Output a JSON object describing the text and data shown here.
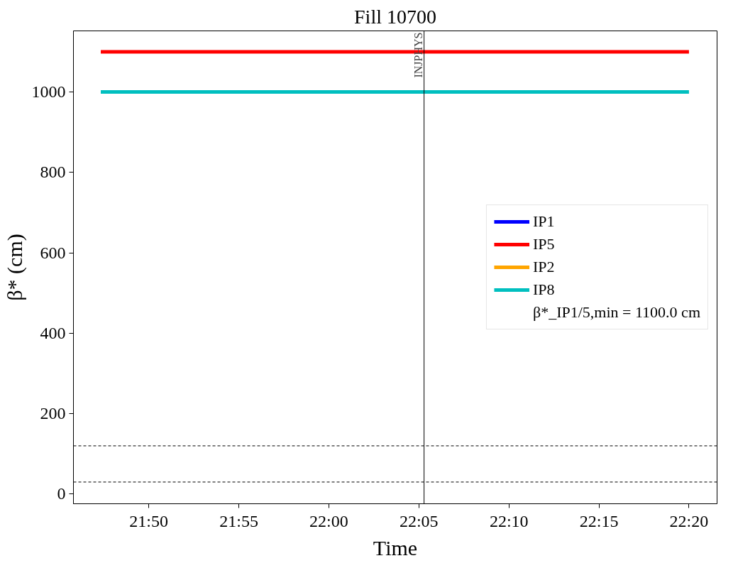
{
  "chart_data": {
    "type": "line",
    "title": "Fill 10700",
    "xlabel": "Time",
    "ylabel": "β* (cm)",
    "series": [
      {
        "name": "IP1",
        "color": "#0000ff",
        "values": [
          null,
          null
        ]
      },
      {
        "name": "IP5",
        "color": "#ff0000",
        "values": [
          1100,
          1100
        ]
      },
      {
        "name": "IP2",
        "color": "#ffa500",
        "values": [
          null,
          null
        ]
      },
      {
        "name": "IP8",
        "color": "#00bfbf",
        "values": [
          1000,
          1000
        ]
      }
    ],
    "x": [
      21.7889,
      22.3333
    ],
    "annotations": [
      "β*_IP1/5,min = 1100.0 cm"
    ],
    "ref_lines": [
      {
        "axis": "x",
        "value": 22.0881,
        "label": "INJPHYS",
        "color": "#000000",
        "line_style": "solid"
      },
      {
        "axis": "y",
        "value": 120,
        "label": null,
        "color": "#000000",
        "line_style": "dashed"
      },
      {
        "axis": "y",
        "value": 30,
        "label": null,
        "color": "#000000",
        "line_style": "dashed"
      }
    ],
    "xlim": [
      21.7636,
      22.3593
    ],
    "xticks": [
      {
        "value": 21.8333,
        "label": "21:50"
      },
      {
        "value": 21.9167,
        "label": "21:55"
      },
      {
        "value": 22.0,
        "label": "22:00"
      },
      {
        "value": 22.0833,
        "label": "22:05"
      },
      {
        "value": 22.1667,
        "label": "22:10"
      },
      {
        "value": 22.25,
        "label": "22:15"
      },
      {
        "value": 22.3333,
        "label": "22:20"
      }
    ],
    "ylim": [
      -24,
      1152
    ],
    "yticks": [
      0,
      200,
      400,
      600,
      800,
      1000
    ],
    "grid": false,
    "legend": "right",
    "marker": "none",
    "line_style": "solid"
  }
}
